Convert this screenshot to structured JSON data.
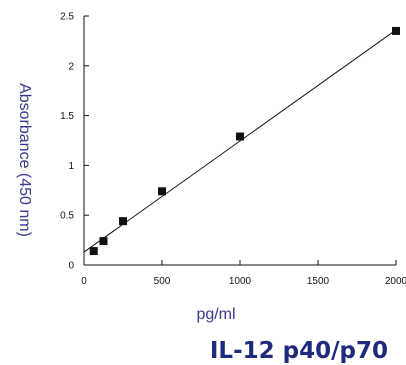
{
  "chart_data": {
    "type": "scatter",
    "title": "IL-12 p40/p70",
    "xlabel": "pg/ml",
    "ylabel": "Absorbance (450 nm)",
    "xlim": [
      0,
      2000
    ],
    "ylim": [
      0,
      2.5
    ],
    "x_ticks": [
      "0",
      "500",
      "1000",
      "1500",
      "2000"
    ],
    "y_ticks": [
      "0",
      "0.5",
      "1",
      "1.5",
      "2",
      "2.5"
    ],
    "grid": false,
    "points": [
      {
        "x": 62.5,
        "y": 0.14
      },
      {
        "x": 125,
        "y": 0.24
      },
      {
        "x": 250,
        "y": 0.44
      },
      {
        "x": 500,
        "y": 0.74
      },
      {
        "x": 1000,
        "y": 1.29
      },
      {
        "x": 2000,
        "y": 2.35
      }
    ],
    "fit_line": {
      "x": [
        0,
        2000
      ],
      "y": [
        0.13,
        2.36
      ]
    },
    "colors": {
      "label": "#3a3a8c",
      "title": "#1e2b7a",
      "marker": "#111111"
    }
  }
}
